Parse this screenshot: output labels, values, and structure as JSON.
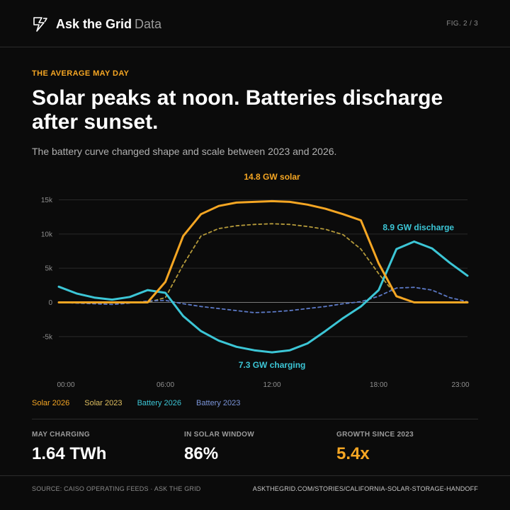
{
  "header": {
    "brand_name": "Ask the Grid",
    "brand_suffix": "Data",
    "figure": "FIG. 2 / 3"
  },
  "kicker": "THE AVERAGE MAY DAY",
  "headline": "Solar peaks at noon. Batteries discharge after sunset.",
  "subtitle": "The battery curve changed shape and scale between 2023 and 2026.",
  "colors": {
    "solar_2026": "#f5a623",
    "solar_2023": "#b59a3a",
    "battery_2026": "#3cc6d6",
    "battery_2023": "#5b78c4",
    "grid": "#2a2a2a",
    "axis_text": "#8f8f8f"
  },
  "chart_data": {
    "type": "line",
    "x": [
      0,
      1,
      2,
      3,
      4,
      5,
      6,
      7,
      8,
      9,
      10,
      11,
      12,
      13,
      14,
      15,
      16,
      17,
      18,
      19,
      20,
      21,
      22,
      23
    ],
    "x_tick_labels": [
      "00:00",
      "06:00",
      "12:00",
      "18:00",
      "23:00"
    ],
    "x_ticks": [
      0,
      6,
      12,
      18,
      23
    ],
    "y_ticks": [
      15000,
      10000,
      5000,
      0,
      -5000
    ],
    "y_tick_labels": [
      "15k",
      "10k",
      "5k",
      "0",
      "-5k"
    ],
    "ylim": [
      -7500,
      16500
    ],
    "grid": true,
    "series": [
      {
        "name": "Solar 2023",
        "style": "dashed",
        "values": [
          0,
          0,
          0,
          0,
          0,
          0,
          700,
          5500,
          9700,
          10800,
          11200,
          11400,
          11500,
          11400,
          11100,
          10700,
          9900,
          7800,
          4200,
          1000,
          0,
          0,
          0,
          0
        ]
      },
      {
        "name": "Battery 2023",
        "style": "dashed",
        "values": [
          0,
          -100,
          -200,
          -300,
          -100,
          200,
          300,
          -200,
          -600,
          -900,
          -1200,
          -1500,
          -1400,
          -1200,
          -900,
          -600,
          -200,
          100,
          900,
          2100,
          2200,
          1800,
          700,
          100
        ]
      },
      {
        "name": "Battery 2026",
        "style": "solid",
        "values": [
          2300,
          1300,
          700,
          400,
          800,
          1800,
          1400,
          -2000,
          -4200,
          -5600,
          -6500,
          -7000,
          -7300,
          -7000,
          -6000,
          -4200,
          -2300,
          -600,
          1800,
          7800,
          8900,
          7900,
          5800,
          3900
        ]
      },
      {
        "name": "Solar 2026",
        "style": "solid",
        "values": [
          0,
          0,
          0,
          0,
          0,
          0,
          3000,
          9700,
          12900,
          14100,
          14600,
          14700,
          14800,
          14700,
          14300,
          13700,
          12900,
          12000,
          5700,
          900,
          0,
          0,
          0,
          0
        ]
      }
    ],
    "annotations": [
      {
        "text": "14.8 GW solar",
        "series": "Solar 2026"
      },
      {
        "text": "8.9 GW discharge",
        "series": "Battery 2026"
      },
      {
        "text": "7.3 GW charging",
        "series": "Battery 2026"
      }
    ]
  },
  "legend": {
    "solar_2026": "Solar 2026",
    "solar_2023": "Solar 2023",
    "battery_2026": "Battery 2026",
    "battery_2023": "Battery 2023"
  },
  "stats": [
    {
      "label": "MAY CHARGING",
      "value": "1.64 TWh"
    },
    {
      "label": "IN SOLAR WINDOW",
      "value": "86%"
    },
    {
      "label": "GROWTH SINCE 2023",
      "value": "5.4x"
    }
  ],
  "footer": {
    "source": "SOURCE: CAISO OPERATING FEEDS · ASK THE GRID",
    "url": "ASKTHEGRID.COM/STORIES/CALIFORNIA-SOLAR-STORAGE-HANDOFF"
  }
}
